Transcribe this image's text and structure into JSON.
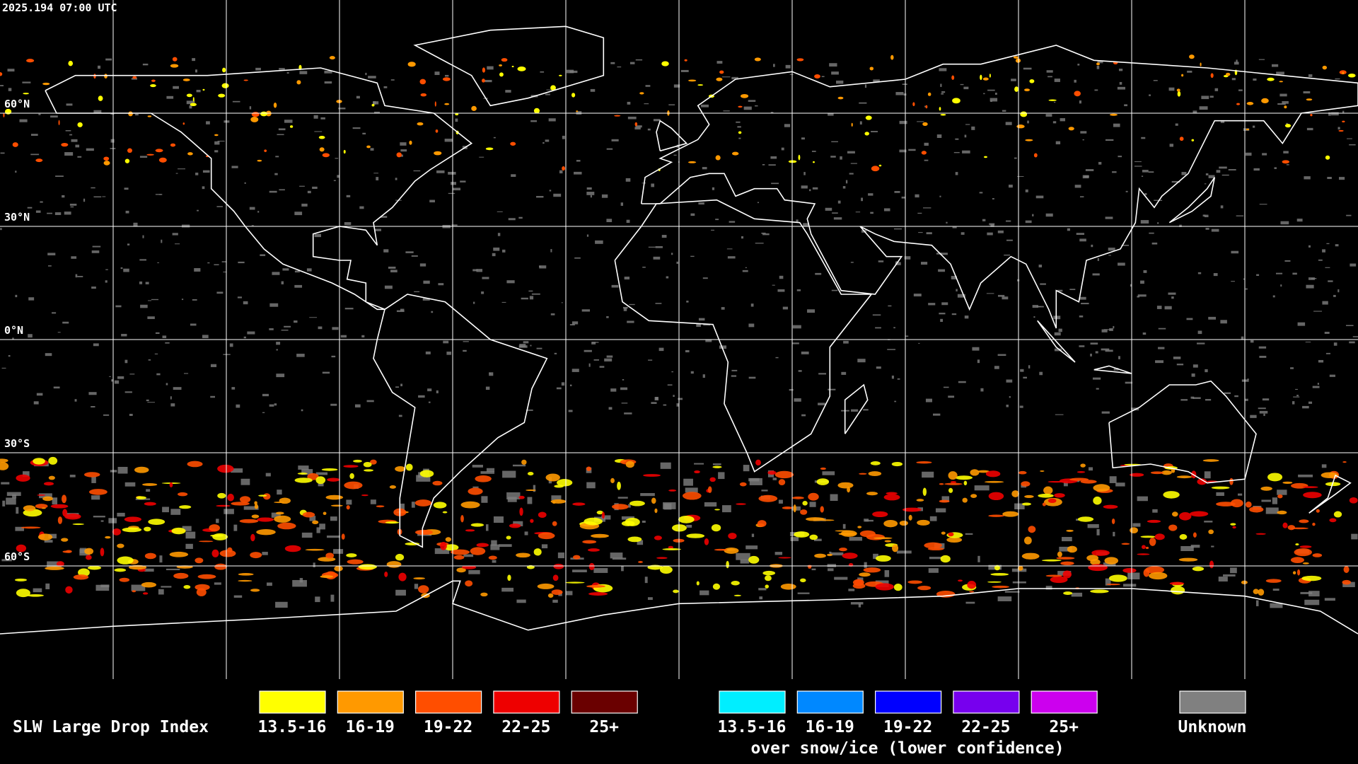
{
  "header": {
    "timestamp": "2025.194 07:00 UTC"
  },
  "map": {
    "latitude_labels": [
      "60°N",
      "30°N",
      "0°N",
      "30°S",
      "60°S"
    ]
  },
  "legend": {
    "title": "SLW Large Drop Index",
    "items": [
      {
        "label": "13.5-16",
        "color": "#ffff00"
      },
      {
        "label": "16-19",
        "color": "#ff9900"
      },
      {
        "label": "19-22",
        "color": "#ff4e00"
      },
      {
        "label": "22-25",
        "color": "#ee0000"
      },
      {
        "label": "25+",
        "color": "#6a0000"
      }
    ],
    "snow_ice_items": [
      {
        "label": "13.5-16",
        "color": "#00eeff"
      },
      {
        "label": "16-19",
        "color": "#0088ff"
      },
      {
        "label": "19-22",
        "color": "#0000ff"
      },
      {
        "label": "22-25",
        "color": "#7700ee"
      },
      {
        "label": "25+",
        "color": "#cc00ee"
      }
    ],
    "snow_ice_caption": "over snow/ice (lower confidence)",
    "unknown": {
      "label": "Unknown",
      "color": "#808080"
    }
  }
}
